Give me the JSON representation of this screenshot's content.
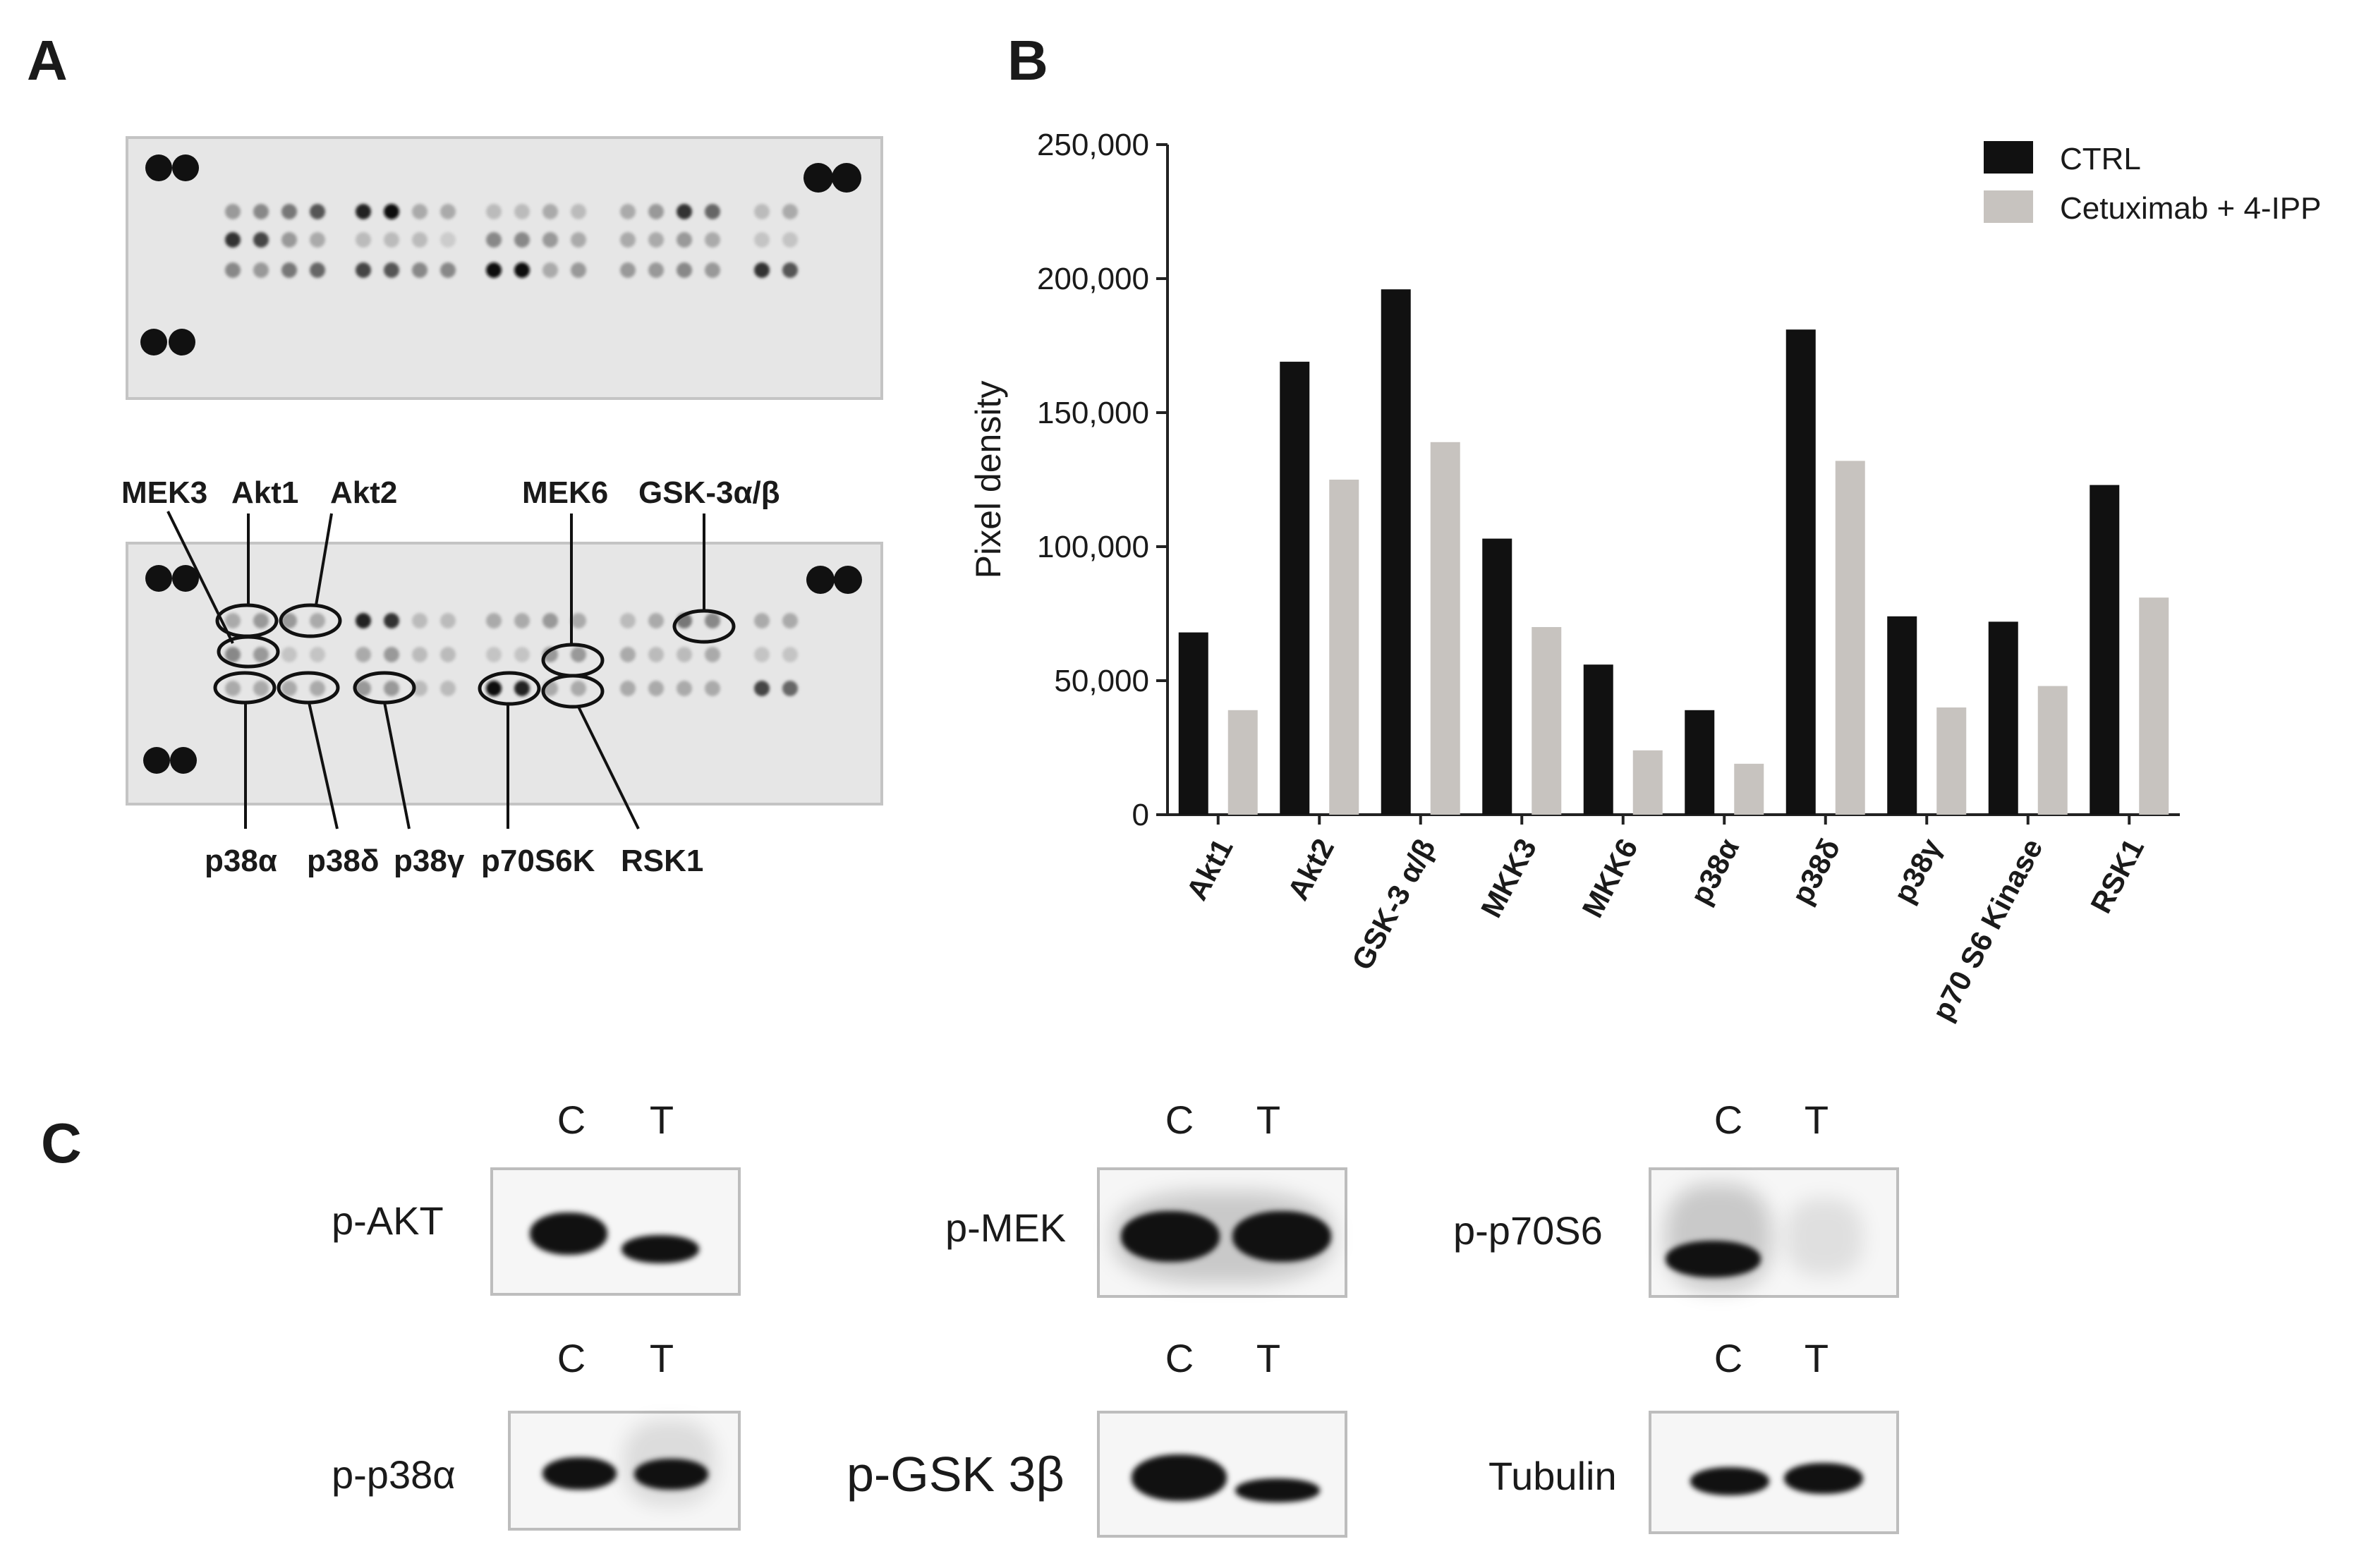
{
  "panels": {
    "a": "A",
    "b": "B",
    "c": "C"
  },
  "panel_a": {
    "top_labels": [
      "MEK3",
      "Akt1",
      "Akt2",
      "MEK6",
      "GSK-3α/β"
    ],
    "bottom_labels": [
      "p38α",
      "p38δ",
      "p38γ",
      "p70S6K",
      "RSK1"
    ]
  },
  "chart_data": {
    "type": "bar",
    "categories": [
      "Akt1",
      "Akt2",
      "GSK-3 α/β",
      "MKK3",
      "MKK6",
      "p38α",
      "p38δ",
      "p38γ",
      "p70 S6 Kinase",
      "RSK1"
    ],
    "series": [
      {
        "name": "CTRL",
        "color": "#111111",
        "values": [
          68000,
          169000,
          196000,
          103000,
          56000,
          39000,
          181000,
          74000,
          72000,
          123000
        ]
      },
      {
        "name": "Cetuximab + 4-IPP",
        "color": "#c7c3bf",
        "values": [
          39000,
          125000,
          139000,
          70000,
          24000,
          19000,
          132000,
          40000,
          48000,
          81000
        ]
      }
    ],
    "ylabel": "Pixel density",
    "ylim": [
      0,
      250000
    ],
    "yticks": [
      "0",
      "50,000",
      "100,000",
      "150,000",
      "200,000",
      "250,000"
    ],
    "legend": "top-right"
  },
  "panel_c": {
    "lanes": [
      "C",
      "T"
    ],
    "blots": [
      {
        "label": "p-AKT"
      },
      {
        "label": "p-MEK"
      },
      {
        "label": "p-p70S6"
      },
      {
        "label": "p-p38α"
      },
      {
        "label": "p-GSK 3β"
      },
      {
        "label": "Tubulin"
      }
    ]
  }
}
